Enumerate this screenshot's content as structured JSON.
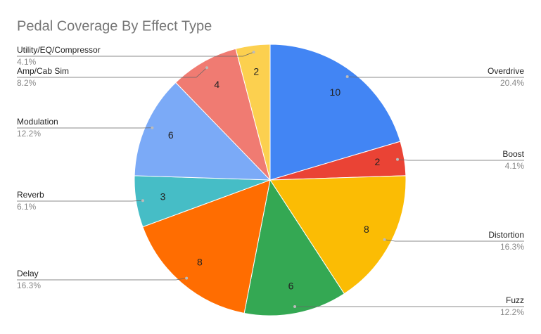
{
  "chart_data": {
    "type": "pie",
    "title": "Pedal Coverage By Effect Type",
    "categories": [
      "Overdrive",
      "Boost",
      "Distortion",
      "Fuzz",
      "Delay",
      "Reverb",
      "Modulation",
      "Amp/Cab Sim",
      "Utility/EQ/Compressor"
    ],
    "values": [
      10,
      2,
      8,
      6,
      8,
      3,
      6,
      4,
      2
    ],
    "percent_labels": [
      "20.4%",
      "4.1%",
      "16.3%",
      "12.2%",
      "16.3%",
      "6.1%",
      "12.2%",
      "8.2%",
      "4.1%"
    ],
    "colors": [
      "#4285f4",
      "#ea4335",
      "#fbbc04",
      "#34a853",
      "#ff6d01",
      "#46bdc6",
      "#7baaf7",
      "#f07b72",
      "#fcd04f"
    ]
  }
}
